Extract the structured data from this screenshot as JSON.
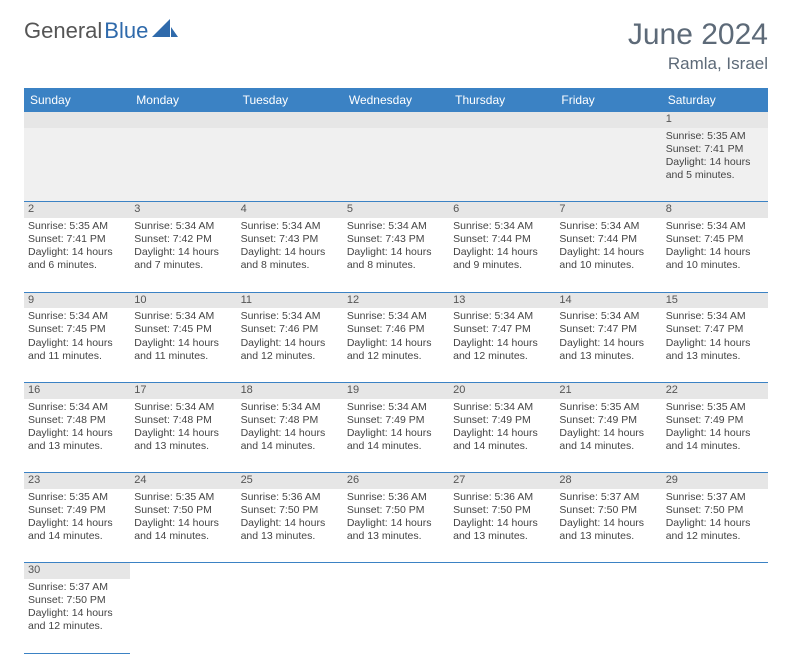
{
  "brand": {
    "part1": "General",
    "part2": "Blue"
  },
  "title": {
    "month": "June 2024",
    "location": "Ramla, Israel"
  },
  "colors": {
    "header_bg": "#3b82c4",
    "header_text": "#ffffff",
    "cell_border": "#3b82c4",
    "daynum_bg": "#e6e6e6",
    "empty_bg": "#f4f4f4",
    "text": "#444444",
    "title_text": "#5d6a78",
    "brand_blue": "#2f6aab"
  },
  "calendar": {
    "type": "table",
    "columns": [
      "Sunday",
      "Monday",
      "Tuesday",
      "Wednesday",
      "Thursday",
      "Friday",
      "Saturday"
    ],
    "weeks": [
      [
        null,
        null,
        null,
        null,
        null,
        null,
        {
          "n": "1",
          "sunrise": "Sunrise: 5:35 AM",
          "sunset": "Sunset: 7:41 PM",
          "daylight": "Daylight: 14 hours and 5 minutes."
        }
      ],
      [
        {
          "n": "2",
          "sunrise": "Sunrise: 5:35 AM",
          "sunset": "Sunset: 7:41 PM",
          "daylight": "Daylight: 14 hours and 6 minutes."
        },
        {
          "n": "3",
          "sunrise": "Sunrise: 5:34 AM",
          "sunset": "Sunset: 7:42 PM",
          "daylight": "Daylight: 14 hours and 7 minutes."
        },
        {
          "n": "4",
          "sunrise": "Sunrise: 5:34 AM",
          "sunset": "Sunset: 7:43 PM",
          "daylight": "Daylight: 14 hours and 8 minutes."
        },
        {
          "n": "5",
          "sunrise": "Sunrise: 5:34 AM",
          "sunset": "Sunset: 7:43 PM",
          "daylight": "Daylight: 14 hours and 8 minutes."
        },
        {
          "n": "6",
          "sunrise": "Sunrise: 5:34 AM",
          "sunset": "Sunset: 7:44 PM",
          "daylight": "Daylight: 14 hours and 9 minutes."
        },
        {
          "n": "7",
          "sunrise": "Sunrise: 5:34 AM",
          "sunset": "Sunset: 7:44 PM",
          "daylight": "Daylight: 14 hours and 10 minutes."
        },
        {
          "n": "8",
          "sunrise": "Sunrise: 5:34 AM",
          "sunset": "Sunset: 7:45 PM",
          "daylight": "Daylight: 14 hours and 10 minutes."
        }
      ],
      [
        {
          "n": "9",
          "sunrise": "Sunrise: 5:34 AM",
          "sunset": "Sunset: 7:45 PM",
          "daylight": "Daylight: 14 hours and 11 minutes."
        },
        {
          "n": "10",
          "sunrise": "Sunrise: 5:34 AM",
          "sunset": "Sunset: 7:45 PM",
          "daylight": "Daylight: 14 hours and 11 minutes."
        },
        {
          "n": "11",
          "sunrise": "Sunrise: 5:34 AM",
          "sunset": "Sunset: 7:46 PM",
          "daylight": "Daylight: 14 hours and 12 minutes."
        },
        {
          "n": "12",
          "sunrise": "Sunrise: 5:34 AM",
          "sunset": "Sunset: 7:46 PM",
          "daylight": "Daylight: 14 hours and 12 minutes."
        },
        {
          "n": "13",
          "sunrise": "Sunrise: 5:34 AM",
          "sunset": "Sunset: 7:47 PM",
          "daylight": "Daylight: 14 hours and 12 minutes."
        },
        {
          "n": "14",
          "sunrise": "Sunrise: 5:34 AM",
          "sunset": "Sunset: 7:47 PM",
          "daylight": "Daylight: 14 hours and 13 minutes."
        },
        {
          "n": "15",
          "sunrise": "Sunrise: 5:34 AM",
          "sunset": "Sunset: 7:47 PM",
          "daylight": "Daylight: 14 hours and 13 minutes."
        }
      ],
      [
        {
          "n": "16",
          "sunrise": "Sunrise: 5:34 AM",
          "sunset": "Sunset: 7:48 PM",
          "daylight": "Daylight: 14 hours and 13 minutes."
        },
        {
          "n": "17",
          "sunrise": "Sunrise: 5:34 AM",
          "sunset": "Sunset: 7:48 PM",
          "daylight": "Daylight: 14 hours and 13 minutes."
        },
        {
          "n": "18",
          "sunrise": "Sunrise: 5:34 AM",
          "sunset": "Sunset: 7:48 PM",
          "daylight": "Daylight: 14 hours and 14 minutes."
        },
        {
          "n": "19",
          "sunrise": "Sunrise: 5:34 AM",
          "sunset": "Sunset: 7:49 PM",
          "daylight": "Daylight: 14 hours and 14 minutes."
        },
        {
          "n": "20",
          "sunrise": "Sunrise: 5:34 AM",
          "sunset": "Sunset: 7:49 PM",
          "daylight": "Daylight: 14 hours and 14 minutes."
        },
        {
          "n": "21",
          "sunrise": "Sunrise: 5:35 AM",
          "sunset": "Sunset: 7:49 PM",
          "daylight": "Daylight: 14 hours and 14 minutes."
        },
        {
          "n": "22",
          "sunrise": "Sunrise: 5:35 AM",
          "sunset": "Sunset: 7:49 PM",
          "daylight": "Daylight: 14 hours and 14 minutes."
        }
      ],
      [
        {
          "n": "23",
          "sunrise": "Sunrise: 5:35 AM",
          "sunset": "Sunset: 7:49 PM",
          "daylight": "Daylight: 14 hours and 14 minutes."
        },
        {
          "n": "24",
          "sunrise": "Sunrise: 5:35 AM",
          "sunset": "Sunset: 7:50 PM",
          "daylight": "Daylight: 14 hours and 14 minutes."
        },
        {
          "n": "25",
          "sunrise": "Sunrise: 5:36 AM",
          "sunset": "Sunset: 7:50 PM",
          "daylight": "Daylight: 14 hours and 13 minutes."
        },
        {
          "n": "26",
          "sunrise": "Sunrise: 5:36 AM",
          "sunset": "Sunset: 7:50 PM",
          "daylight": "Daylight: 14 hours and 13 minutes."
        },
        {
          "n": "27",
          "sunrise": "Sunrise: 5:36 AM",
          "sunset": "Sunset: 7:50 PM",
          "daylight": "Daylight: 14 hours and 13 minutes."
        },
        {
          "n": "28",
          "sunrise": "Sunrise: 5:37 AM",
          "sunset": "Sunset: 7:50 PM",
          "daylight": "Daylight: 14 hours and 13 minutes."
        },
        {
          "n": "29",
          "sunrise": "Sunrise: 5:37 AM",
          "sunset": "Sunset: 7:50 PM",
          "daylight": "Daylight: 14 hours and 12 minutes."
        }
      ],
      [
        {
          "n": "30",
          "sunrise": "Sunrise: 5:37 AM",
          "sunset": "Sunset: 7:50 PM",
          "daylight": "Daylight: 14 hours and 12 minutes."
        },
        null,
        null,
        null,
        null,
        null,
        null
      ]
    ]
  }
}
